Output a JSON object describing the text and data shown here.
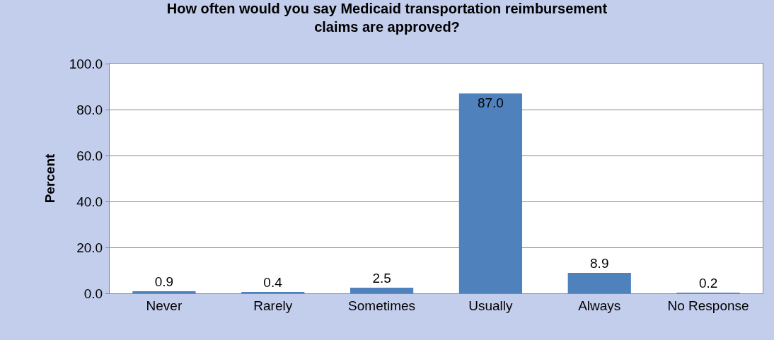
{
  "chart_data": {
    "type": "bar",
    "title": "How often would you say Medicaid transportation reimbursement claims are approved?",
    "ylabel": "Percent",
    "categories": [
      "Never",
      "Rarely",
      "Sometimes",
      "Usually",
      "Always",
      "No Response"
    ],
    "values": [
      0.9,
      0.4,
      2.5,
      87.0,
      8.9,
      0.2
    ],
    "value_labels": [
      "0.9",
      "0.4",
      "2.5",
      "87.0",
      "8.9",
      "0.2"
    ],
    "color": "#4f81bd",
    "ylim": [
      0,
      100
    ],
    "yticks": [
      {
        "value": 0,
        "label": "0.0"
      },
      {
        "value": 20,
        "label": "20.0"
      },
      {
        "value": 40,
        "label": "40.0"
      },
      {
        "value": 60,
        "label": "60.0"
      },
      {
        "value": 80,
        "label": "80.0"
      },
      {
        "value": 100,
        "label": "100.0"
      }
    ],
    "grid": "y",
    "legend": false
  }
}
